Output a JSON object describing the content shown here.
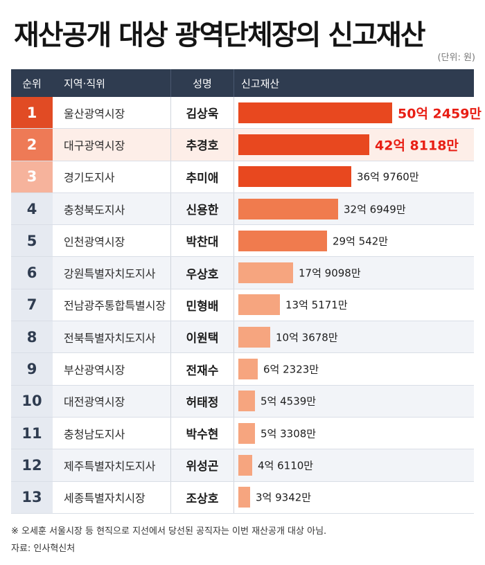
{
  "title": "재산공개 대상 광역단체장의 신고재산",
  "unit": "(단위: 원)",
  "headers": {
    "rank": "순위",
    "region": "지역·직위",
    "name": "성명",
    "asset": "신고재산"
  },
  "colors": {
    "header": "#2f3c50",
    "bar_strong": "#e8481f",
    "bar_mid": "#f07b4e",
    "bar_light": "#f6a57f",
    "highlight_value": "#e81e14"
  },
  "rows": [
    {
      "rank": "1",
      "region": "울산광역시장",
      "name": "김상욱",
      "label": "50억 2459만"
    },
    {
      "rank": "2",
      "region": "대구광역시장",
      "name": "추경호",
      "label": "42억 8118만"
    },
    {
      "rank": "3",
      "region": "경기도지사",
      "name": "추미애",
      "label": "36억 9760만"
    },
    {
      "rank": "4",
      "region": "충청북도지사",
      "name": "신용한",
      "label": "32억 6949만"
    },
    {
      "rank": "5",
      "region": "인천광역시장",
      "name": "박찬대",
      "label": "29억 542만"
    },
    {
      "rank": "6",
      "region": "강원특별자치도지사",
      "name": "우상호",
      "label": "17억 9098만"
    },
    {
      "rank": "7",
      "region": "전남광주통합특별시장",
      "name": "민형배",
      "label": "13억 5171만"
    },
    {
      "rank": "8",
      "region": "전북특별자치도지사",
      "name": "이원택",
      "label": "10억 3678만"
    },
    {
      "rank": "9",
      "region": "부산광역시장",
      "name": "전재수",
      "label": "6억 2323만"
    },
    {
      "rank": "10",
      "region": "대전광역시장",
      "name": "허태정",
      "label": "5억 4539만"
    },
    {
      "rank": "11",
      "region": "충청남도지사",
      "name": "박수현",
      "label": "5억 3308만"
    },
    {
      "rank": "12",
      "region": "제주특별자치도지사",
      "name": "위성곤",
      "label": "4억 6110만"
    },
    {
      "rank": "13",
      "region": "세종특별자치시장",
      "name": "조상호",
      "label": "3억 9342만"
    }
  ],
  "chart_data": {
    "type": "bar",
    "orientation": "horizontal",
    "categories": [
      "김상욱",
      "추경호",
      "추미애",
      "신용한",
      "박찬대",
      "우상호",
      "민형배",
      "이원택",
      "전재수",
      "허태정",
      "박수현",
      "위성곤",
      "조상호"
    ],
    "values": [
      5024590000,
      4281180000,
      3697600000,
      3269490000,
      2905420000,
      1790980000,
      1351710000,
      1036780000,
      623230000,
      545390000,
      533080000,
      461100000,
      393420000
    ],
    "xlim": [
      0,
      5024590000
    ],
    "ylabel": "",
    "xlabel": ""
  },
  "footnote": "※ 오세훈 서울시장 등 현직으로 지선에서 당선된 공직자는 이번 재산공개 대상 아님.",
  "source": "자료: 인사혁신처"
}
